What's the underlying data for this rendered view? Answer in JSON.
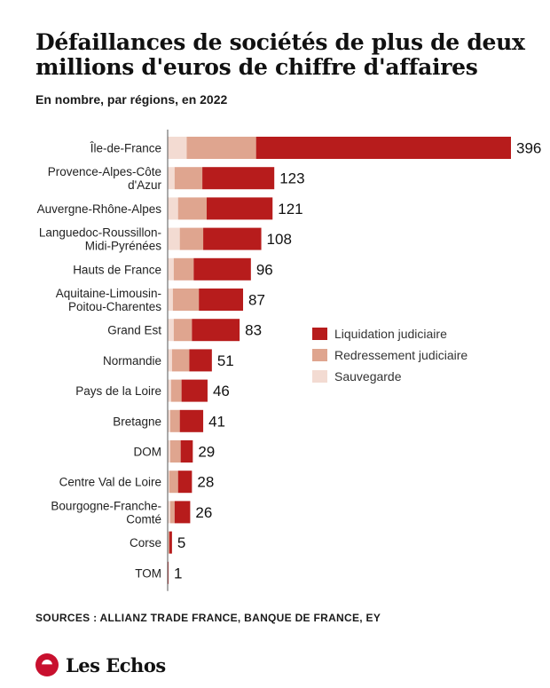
{
  "title": "Défaillances de sociétés de plus de deux millions d'euros de chiffre d'affaires",
  "subtitle": "En nombre, par régions, en 2022",
  "sources": "SOURCES : ALLIANZ TRADE FRANCE, BANQUE DE FRANCE, EY",
  "brand": "Les Echos",
  "colors": {
    "liquidation": "#b71c1c",
    "redressement": "#dfa58f",
    "sauvegarde": "#f3dbd2",
    "axis": "#555555"
  },
  "legend": [
    {
      "key": "liquidation",
      "label": "Liquidation judiciaire"
    },
    {
      "key": "redressement",
      "label": "Redressement judiciaire"
    },
    {
      "key": "sauvegarde",
      "label": "Sauvegarde"
    }
  ],
  "chart_data": {
    "type": "bar",
    "orientation": "horizontal",
    "stacked": true,
    "title": "Défaillances de sociétés de plus de deux millions d'euros de chiffre d'affaires",
    "subtitle": "En nombre, par régions, en 2022",
    "legend_position": "right",
    "categories": [
      "Île-de-France",
      "Provence-Alpes-Côte d'Azur",
      "Auvergne-Rhône-Alpes",
      "Languedoc-Roussillon-Midi-Pyrénées",
      "Hauts de France",
      "Aquitaine-Limousin-Poitou-Charentes",
      "Grand Est",
      "Normandie",
      "Pays de la Loire",
      "Bretagne",
      "DOM",
      "Centre Val de Loire",
      "Bourgogne-Franche-Comté",
      "Corse",
      "TOM"
    ],
    "category_lines": [
      [
        "Île-de-France"
      ],
      [
        "Provence-Alpes-Côte",
        "d'Azur"
      ],
      [
        "Auvergne-Rhône-Alpes"
      ],
      [
        "Languedoc-Roussillon-",
        "Midi-Pyrénées"
      ],
      [
        "Hauts de France"
      ],
      [
        "Aquitaine-Limousin-",
        "Poitou-Charentes"
      ],
      [
        "Grand Est"
      ],
      [
        "Normandie"
      ],
      [
        "Pays de la Loire"
      ],
      [
        "Bretagne"
      ],
      [
        "DOM"
      ],
      [
        "Centre Val de Loire"
      ],
      [
        "Bourgogne-Franche-",
        "Comté"
      ],
      [
        "Corse"
      ],
      [
        "TOM"
      ]
    ],
    "series": [
      {
        "name": "Sauvegarde",
        "values": [
          22,
          8,
          12,
          14,
          7,
          6,
          7,
          5,
          4,
          3,
          3,
          2,
          3,
          1,
          0
        ]
      },
      {
        "name": "Redressement judiciaire",
        "values": [
          80,
          32,
          33,
          27,
          23,
          30,
          21,
          20,
          12,
          11,
          12,
          10,
          5,
          1,
          0
        ]
      },
      {
        "name": "Liquidation judiciaire",
        "values": [
          294,
          83,
          76,
          67,
          66,
          51,
          55,
          26,
          30,
          27,
          14,
          16,
          18,
          3,
          1
        ]
      }
    ],
    "totals": [
      396,
      123,
      121,
      108,
      96,
      87,
      83,
      51,
      46,
      41,
      29,
      28,
      26,
      5,
      1
    ],
    "xlim": [
      0,
      396
    ]
  }
}
